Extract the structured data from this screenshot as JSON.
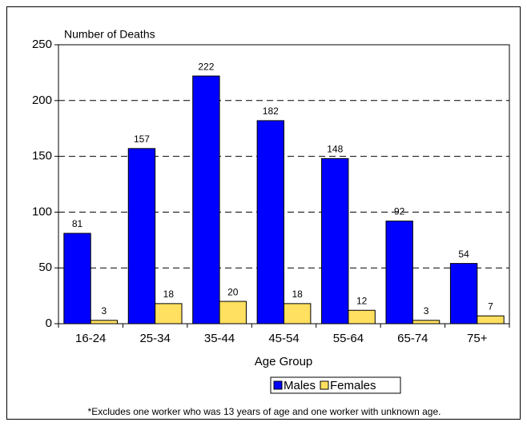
{
  "chart_data": {
    "type": "bar",
    "y_axis_label": "Number of Deaths",
    "x_axis_label": "Age Group",
    "categories": [
      "16-24",
      "25-34",
      "35-44",
      "45-54",
      "55-64",
      "65-74",
      "75+"
    ],
    "series": [
      {
        "name": "Males",
        "color": "#0000ff",
        "values": [
          81,
          157,
          222,
          182,
          148,
          92,
          54
        ]
      },
      {
        "name": "Females",
        "color": "#ffe060",
        "values": [
          3,
          18,
          20,
          18,
          12,
          3,
          7
        ]
      }
    ],
    "ylim": [
      0,
      250
    ],
    "yticks": [
      0,
      50,
      100,
      150,
      200,
      250
    ],
    "grid": true,
    "legend": "bottom",
    "footnote": "*Excludes one worker who was 13 years of age and one worker with unknown age."
  }
}
